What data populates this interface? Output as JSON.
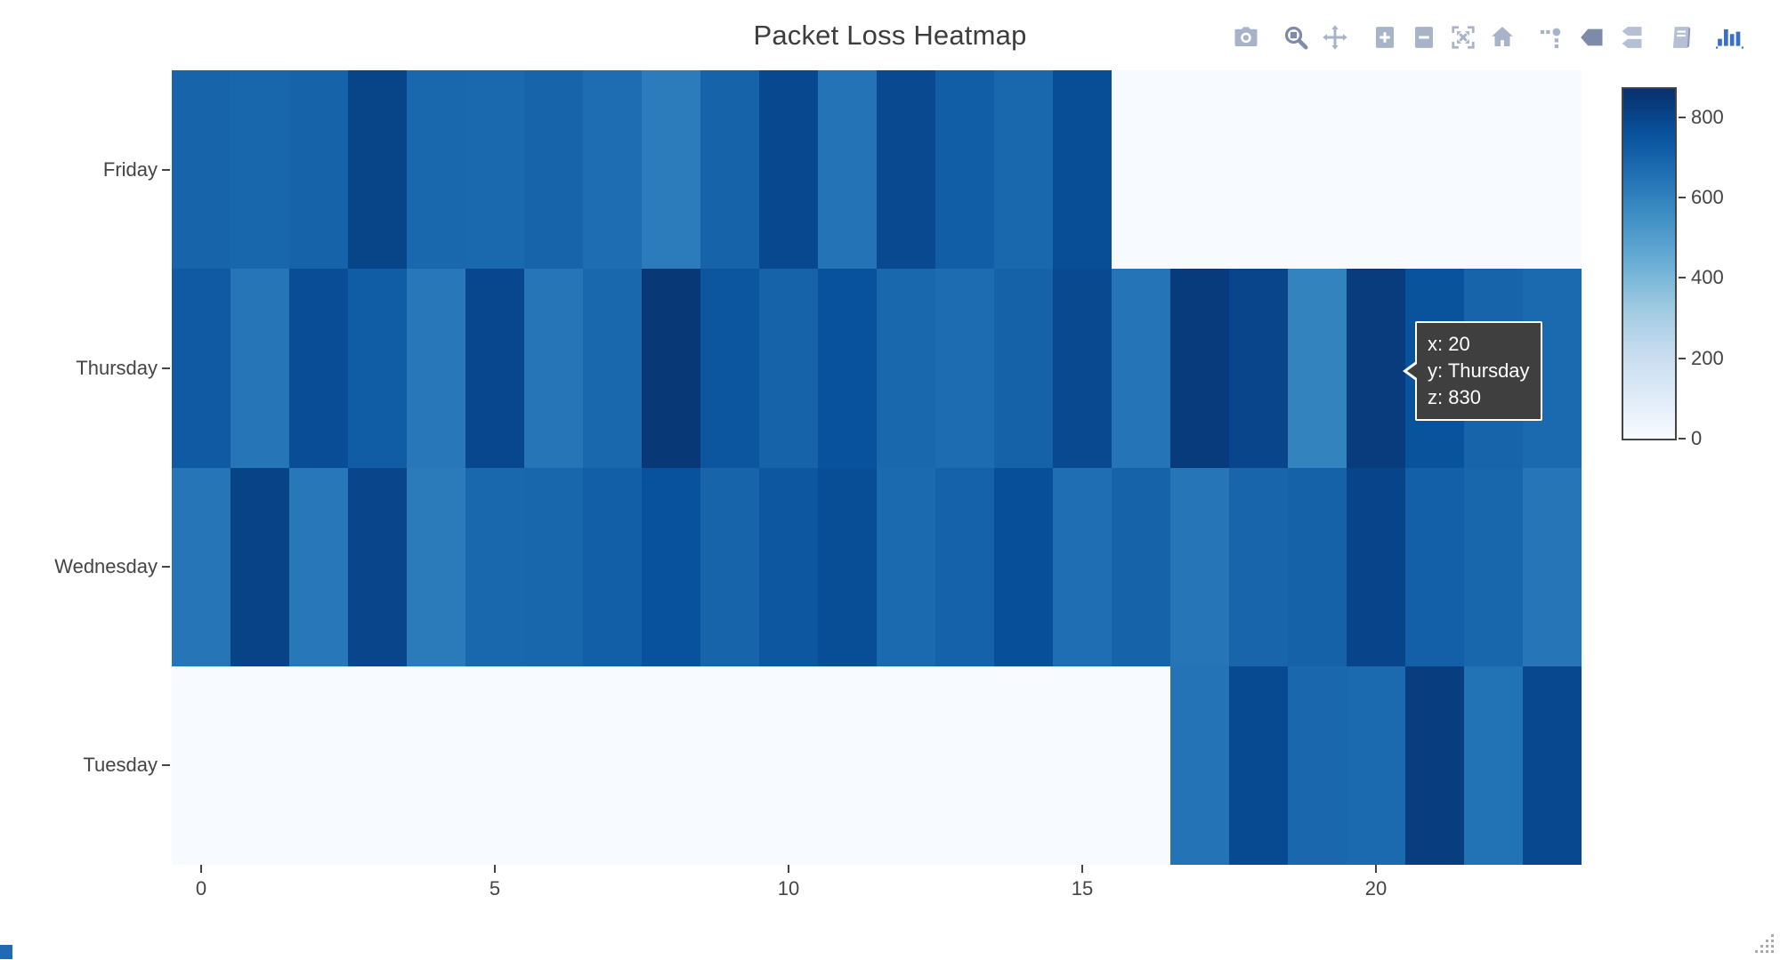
{
  "title": "Packet Loss Heatmap",
  "colors": {
    "title_text": "#3d3d3d",
    "axis_text": "#444444",
    "modebar_inactive": "#a7b3c9",
    "modebar_active": "#7d8ba8",
    "logo_blue": "#3a6fc7",
    "tooltip_bg": "#3f3f3f",
    "tooltip_border": "#ffffff",
    "tooltip_text": "#ffffff",
    "colorbar_border": "#444444",
    "empty_cell": "#f7fbff"
  },
  "modebar": {
    "buttons": [
      "download-plot-as-png",
      "zoom",
      "pan",
      "zoom-in",
      "zoom-out",
      "autoscale",
      "reset-axes",
      "toggle-spike-lines",
      "show-closest-data-on-hover",
      "compare-data-on-hover",
      "notebook",
      "plotly-logo"
    ],
    "active_buttons": [
      "zoom",
      "show-closest-data-on-hover"
    ]
  },
  "tooltip": {
    "lines": [
      "x: 20",
      "y: Thursday",
      "z: 830"
    ]
  },
  "chart_data": {
    "type": "heatmap",
    "title": "Packet Loss Heatmap",
    "x_hours_range": [
      0,
      23
    ],
    "x_tick_values": [
      0,
      5,
      10,
      15,
      20
    ],
    "x_tick_labels": [
      "0",
      "5",
      "10",
      "15",
      "20"
    ],
    "rows_top_to_bottom": [
      "Friday",
      "Thursday",
      "Wednesday",
      "Tuesday"
    ],
    "z": [
      [
        695,
        690,
        700,
        805,
        688,
        682,
        695,
        665,
        615,
        700,
        790,
        645,
        788,
        718,
        688,
        772,
        0,
        0,
        0,
        0,
        0,
        0,
        0,
        0
      ],
      [
        730,
        640,
        775,
        722,
        630,
        795,
        638,
        688,
        845,
        745,
        700,
        760,
        688,
        668,
        705,
        788,
        642,
        833,
        800,
        592,
        830,
        755,
        695,
        680
      ],
      [
        640,
        808,
        628,
        802,
        620,
        688,
        690,
        715,
        762,
        698,
        740,
        772,
        678,
        702,
        768,
        662,
        700,
        640,
        692,
        703,
        803,
        710,
        690,
        638
      ],
      [
        0,
        0,
        0,
        0,
        0,
        0,
        0,
        0,
        0,
        0,
        0,
        0,
        0,
        0,
        0,
        0,
        0,
        645,
        785,
        685,
        678,
        825,
        648,
        792
      ]
    ],
    "zmin": 0,
    "zmax": 870,
    "hovered_cell": {
      "x": 20,
      "y": "Thursday",
      "z": 830
    },
    "colorscale_name": "Blues",
    "colorscale_stops": [
      [
        0,
        "247,251,255"
      ],
      [
        0.125,
        "222,235,247"
      ],
      [
        0.25,
        "198,219,239"
      ],
      [
        0.375,
        "158,202,225"
      ],
      [
        0.5,
        "107,174,214"
      ],
      [
        0.625,
        "66,146,198"
      ],
      [
        0.75,
        "33,113,181"
      ],
      [
        0.875,
        "8,81,156"
      ],
      [
        1,
        "8,48,107"
      ]
    ],
    "colorbar_tick_values": [
      0,
      200,
      400,
      600,
      800
    ],
    "colorbar_tick_labels": [
      "0",
      "200",
      "400",
      "600",
      "800"
    ],
    "legend_position": "right-colorbar",
    "grid": false
  }
}
